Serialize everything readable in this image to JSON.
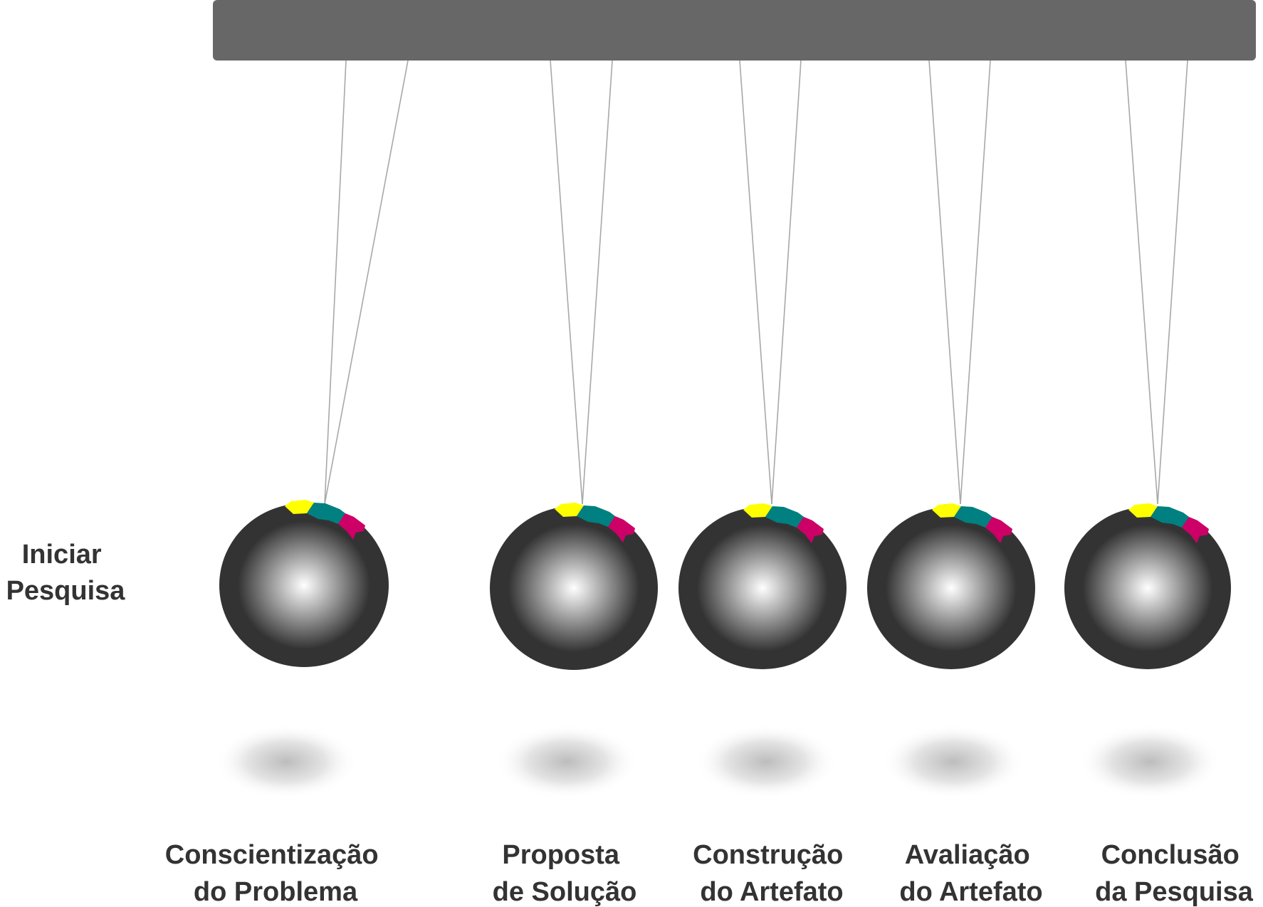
{
  "start_label": [
    "Iniciar",
    "Pesquisa"
  ],
  "colors": {
    "bar": "#676767",
    "string": "#a8a8a8",
    "ball_outer": "#333333",
    "ball_highlight": "#ffffff",
    "arrow_yellow": "#ffff00",
    "arrow_teal": "#008080",
    "arrow_magenta": "#cc0066",
    "text": "#333333"
  },
  "stages": [
    {
      "line1": "Conscientização",
      "line2": "do Problema"
    },
    {
      "line1": "Proposta",
      "line2": "de Solução"
    },
    {
      "line1": "Construção",
      "line2": "do Artefato"
    },
    {
      "line1": "Avaliação",
      "line2": "do Artefato"
    },
    {
      "line1": "Conclusão",
      "line2": "da Pesquisa"
    }
  ]
}
